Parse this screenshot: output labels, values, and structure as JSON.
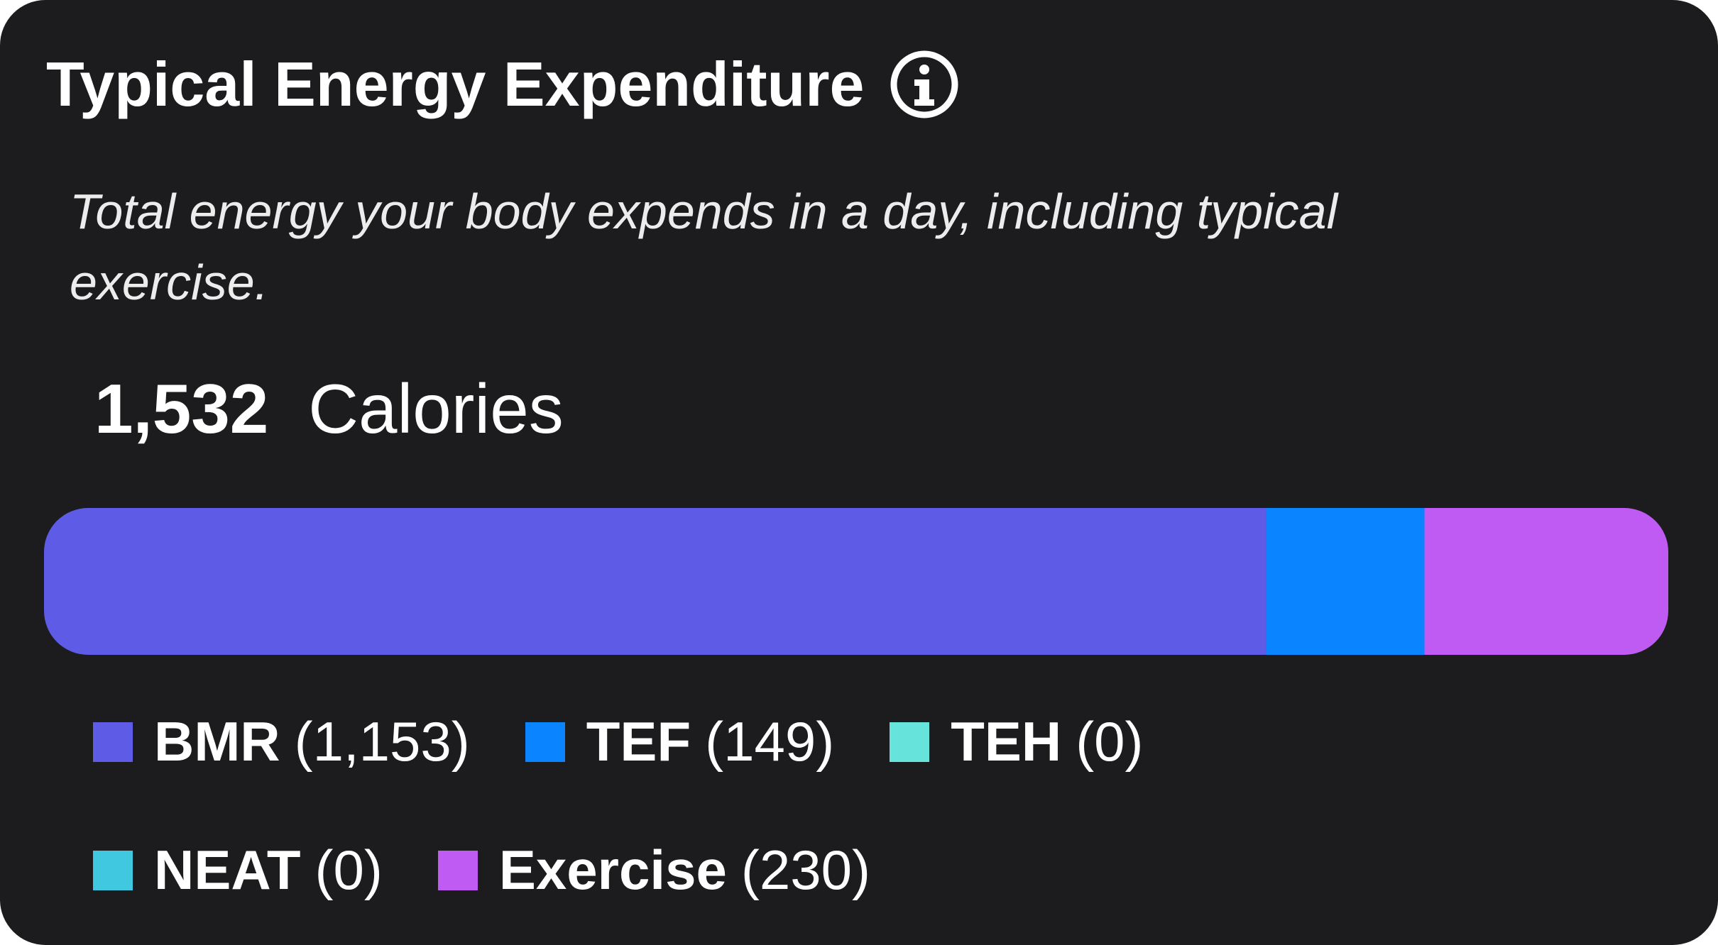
{
  "header": {
    "title": "Typical Energy Expenditure",
    "subtitle": "Total energy your body expends in a day, including typical exercise."
  },
  "chart_data": {
    "type": "stacked-bar",
    "total": {
      "value": 1532,
      "label": "1,532"
    },
    "unit": "Calories",
    "categories": [
      "BMR",
      "TEF",
      "TEH",
      "NEAT",
      "Exercise"
    ],
    "values": [
      1153,
      149,
      0,
      0,
      230
    ],
    "value_labels": [
      "(1,153)",
      "(149)",
      "(0)",
      "(0)",
      "(230)"
    ],
    "colors": [
      "#5e5ce6",
      "#0a84ff",
      "#66e4dc",
      "#40c8e0",
      "#bf5af2"
    ]
  }
}
